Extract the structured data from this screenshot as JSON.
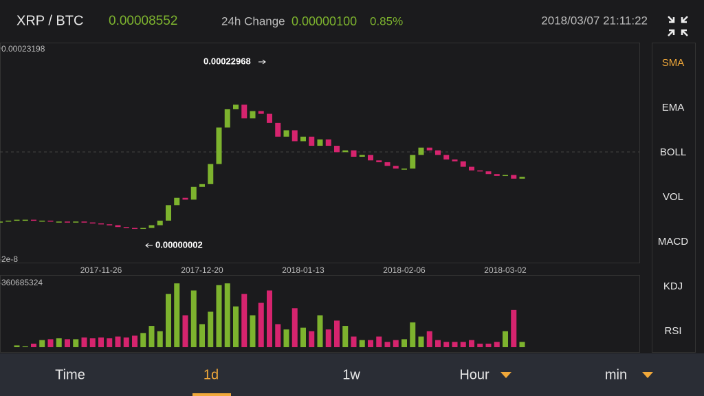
{
  "header": {
    "pair": "XRP / BTC",
    "price": "0.00008552",
    "change_label": "24h Change",
    "change": "0.00000100",
    "change_pct": "0.85%",
    "datetime": "2018/03/07 21:11:22"
  },
  "indicators": [
    "SMA",
    "EMA",
    "BOLL",
    "VOL",
    "MACD",
    "KDJ",
    "RSI"
  ],
  "tabs": [
    "Time",
    "1d",
    "1w",
    "Hour",
    "min"
  ],
  "chart_data": {
    "type": "candlestick",
    "categories": [
      null,
      null,
      null,
      null,
      null,
      null,
      null,
      null,
      null,
      null,
      null,
      null,
      "2017-11-26",
      null,
      null,
      null,
      null,
      null,
      null,
      null,
      null,
      null,
      null,
      null,
      "2017-12-20",
      null,
      null,
      null,
      null,
      null,
      null,
      null,
      null,
      null,
      null,
      null,
      "2018-01-13",
      null,
      null,
      null,
      null,
      null,
      null,
      null,
      null,
      null,
      null,
      null,
      "2018-02-06",
      null,
      null,
      null,
      null,
      null,
      null,
      null,
      null,
      null,
      null,
      null,
      "2018-03-02",
      null,
      null
    ],
    "values": [
      4.2e-05,
      4.3e-05,
      4.4e-05,
      4.4e-05,
      4.3e-05,
      4.3e-05,
      4.2e-05,
      4.2e-05,
      4.1e-05,
      4.2e-05,
      4.1e-05,
      4e-05,
      3.9e-05,
      3.8e-05,
      3.6e-05,
      3.5e-05,
      3.4e-05,
      3.5e-05,
      3.8e-05,
      4.3e-05,
      6e-05,
      6.8e-05,
      6.6e-05,
      8e-05,
      8.3e-05,
      0.000105,
      0.000145,
      0.000165,
      0.00017,
      0.000155,
      0.000163,
      0.00016,
      0.00015,
      0.000135,
      0.000142,
      0.00013,
      0.000135,
      0.000125,
      0.000132,
      0.000125,
      0.000118,
      0.00012,
      0.000113,
      0.000115,
      0.000109,
      0.000107,
      0.000103,
      0.0001,
      0.0001,
      0.000115,
      0.000123,
      0.00012,
      0.000115,
      0.00011,
      0.000108,
      0.000102,
      9.8e-05,
      9.7e-05,
      9.4e-05,
      9.2e-05,
      9.3e-05,
      8.9e-05,
      9.1e-05
    ],
    "volume": [
      0,
      0,
      10000000,
      5000000,
      20000000,
      40000000,
      45000000,
      50000000,
      45000000,
      45000000,
      55000000,
      50000000,
      55000000,
      50000000,
      60000000,
      55000000,
      65000000,
      80000000,
      120000000,
      90000000,
      300000000,
      360000000,
      180000000,
      320000000,
      130000000,
      200000000,
      350000000,
      360000000,
      230000000,
      300000000,
      180000000,
      250000000,
      320000000,
      130000000,
      100000000,
      220000000,
      110000000,
      90000000,
      180000000,
      100000000,
      150000000,
      120000000,
      60000000,
      40000000,
      40000000,
      60000000,
      30000000,
      40000000,
      45000000,
      140000000,
      60000000,
      90000000,
      40000000,
      30000000,
      30000000,
      30000000,
      40000000,
      20000000,
      20000000,
      30000000,
      90000000,
      210000000,
      30000000
    ],
    "ylim": [
      2e-08,
      0.00023198
    ],
    "yticks": [
      0.00023198,
      2e-08
    ],
    "volume_ylim": [
      0,
      360685324
    ],
    "volume_yticks": [
      360685324
    ],
    "max_label": "0.00022968",
    "min_label": "0.00000002",
    "up_color": "#7db32e",
    "down_color": "#d6246e"
  }
}
